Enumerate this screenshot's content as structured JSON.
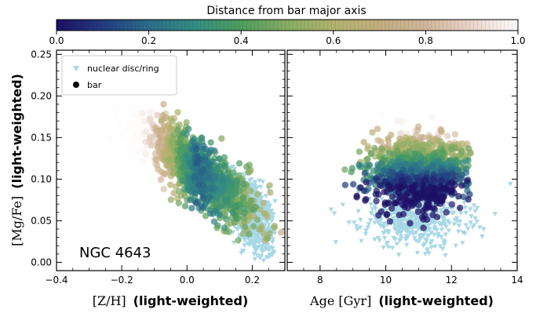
{
  "colorbar": {
    "label": "Distance from bar major axis",
    "ticks": [
      "0.0",
      "0.2",
      "0.4",
      "0.6",
      "0.8",
      "1.0"
    ],
    "range": [
      0,
      1
    ]
  },
  "legend": {
    "items": [
      {
        "label": "nuclear disc/ring",
        "marker": "triangle-down",
        "color": "#a7d8e6"
      },
      {
        "label": "bar",
        "marker": "circle",
        "color": "#000000"
      }
    ]
  },
  "annotation": "NGC 4643",
  "y_axis": {
    "label_math": "[Mg/Fe]",
    "label_bold": "(light-weighted)",
    "ticks": [
      "0.00",
      "0.05",
      "0.10",
      "0.15",
      "0.20",
      "0.25"
    ]
  },
  "left_x_axis": {
    "label_math": "[Z/H]",
    "label_bold": "(light-weighted)",
    "ticks": [
      "−0.4",
      "−0.2",
      "0.0",
      "0.2"
    ]
  },
  "right_x_axis": {
    "label_math": "Age [Gyr]",
    "label_bold": "(light-weighted)",
    "ticks": [
      "8",
      "10",
      "12",
      "14"
    ]
  },
  "chart_data": [
    {
      "type": "scatter",
      "panel": "left",
      "xlim": [
        -0.4,
        0.3
      ],
      "ylim": [
        -0.01,
        0.255
      ],
      "colormap": "gist_earth (dark blue → green → tan → white)",
      "series": [
        {
          "name": "nuclear disc/ring",
          "marker": "triangle-down",
          "color": "#a7d8e6",
          "cloud": {
            "x_center": 0.2,
            "x_spread": 0.045,
            "y_center": 0.055,
            "y_spread": 0.022,
            "n": 650
          }
        },
        {
          "name": "bar",
          "marker": "circle",
          "colored_by": "distance from bar major axis",
          "cloud": {
            "x_center": 0.03,
            "x_spread": 0.09,
            "y_center": 0.11,
            "y_spread": 0.025,
            "n": 1200,
            "trend": "anti-correlated"
          }
        }
      ]
    },
    {
      "type": "scatter",
      "panel": "right",
      "xlim": [
        7,
        14
      ],
      "ylim": [
        -0.01,
        0.255
      ],
      "colormap": "gist_earth (dark blue → green → tan → white)",
      "series": [
        {
          "name": "nuclear disc/ring",
          "marker": "triangle-down",
          "color": "#a7d8e6",
          "cloud": {
            "x_center": 10.9,
            "x_spread": 0.8,
            "y_center": 0.055,
            "y_spread": 0.018,
            "n": 550
          }
        },
        {
          "name": "bar",
          "marker": "circle",
          "colored_by": "distance from bar major axis",
          "cloud": {
            "x_center": 11.0,
            "x_spread": 0.9,
            "y_center": 0.11,
            "y_spread": 0.025,
            "n": 1200,
            "trend": "none"
          }
        }
      ]
    }
  ]
}
